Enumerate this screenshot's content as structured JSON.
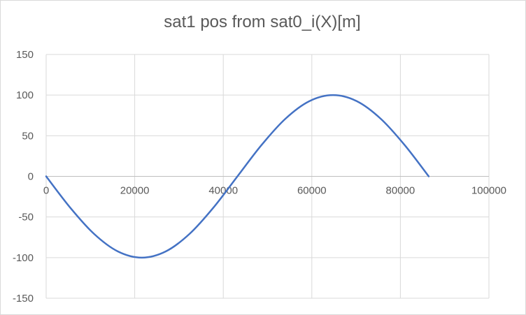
{
  "chart_data": {
    "type": "line",
    "title": "sat1 pos from sat0_i(X)[m]",
    "xlabel": "",
    "ylabel": "",
    "xlim": [
      0,
      100000
    ],
    "ylim": [
      -150,
      150
    ],
    "x_ticks": [
      0,
      20000,
      40000,
      60000,
      80000,
      100000
    ],
    "x_tick_labels": [
      "0",
      "20000",
      "40000",
      "60000",
      "80000",
      "100000"
    ],
    "y_ticks": [
      150,
      100,
      50,
      0,
      -50,
      -100,
      -150
    ],
    "y_tick_labels": [
      "150",
      "100",
      "50",
      "0",
      "-50",
      "-100",
      "-150"
    ],
    "grid": true,
    "legend": "none",
    "series": [
      {
        "color": "#4472c4",
        "x": [
          0,
          5400,
          10800,
          16200,
          21600,
          27000,
          32400,
          37800,
          43200,
          48600,
          54000,
          59400,
          64800,
          70200,
          75600,
          81000,
          86400
        ],
        "y": [
          0,
          -38.3,
          -70.7,
          -92.4,
          -100,
          -92.4,
          -70.7,
          -38.3,
          0,
          38.3,
          70.7,
          92.4,
          100,
          92.4,
          70.7,
          38.3,
          0
        ]
      }
    ]
  }
}
